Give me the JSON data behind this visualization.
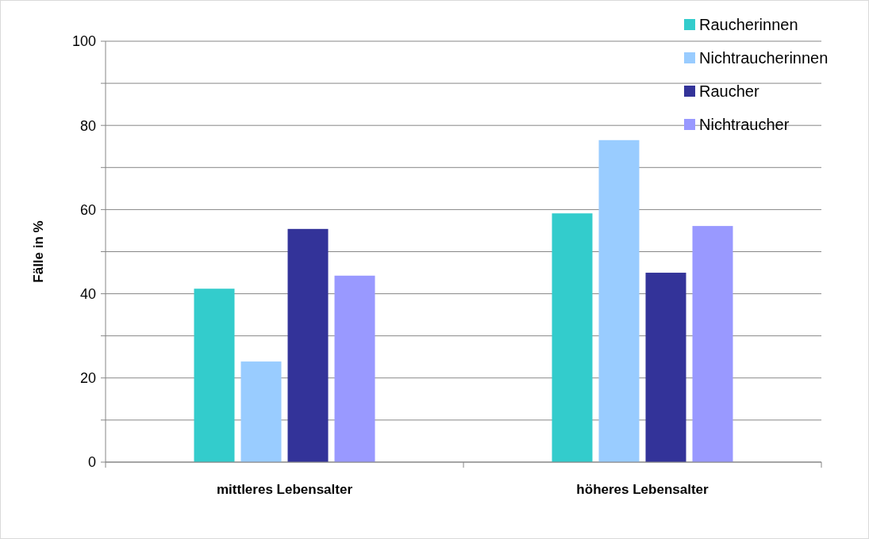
{
  "chart_data": {
    "type": "bar",
    "ylabel": "Fälle in %",
    "categories": [
      "mittleres Lebensalter",
      "höheres Lebensalter"
    ],
    "series": [
      {
        "name": "Raucherinnen",
        "color": "#33cccc",
        "values": [
          41.2,
          59.1
        ]
      },
      {
        "name": "Nichtraucherinnen",
        "color": "#99ccff",
        "values": [
          23.9,
          76.5
        ]
      },
      {
        "name": "Raucher",
        "color": "#333399",
        "values": [
          55.4,
          45.0
        ]
      },
      {
        "name": "Nichtraucher",
        "color": "#9999ff",
        "values": [
          44.3,
          56.1
        ]
      }
    ],
    "ylim": [
      0,
      100
    ],
    "yticks": [
      0,
      {
        "value": 10,
        "label": null
      },
      20,
      {
        "value": 30,
        "label": null
      },
      40,
      {
        "value": 50,
        "label": null
      },
      60,
      {
        "value": 70,
        "label": null
      },
      80,
      {
        "value": 90,
        "label": null
      },
      100
    ],
    "grid": "y",
    "legend": "top right"
  }
}
